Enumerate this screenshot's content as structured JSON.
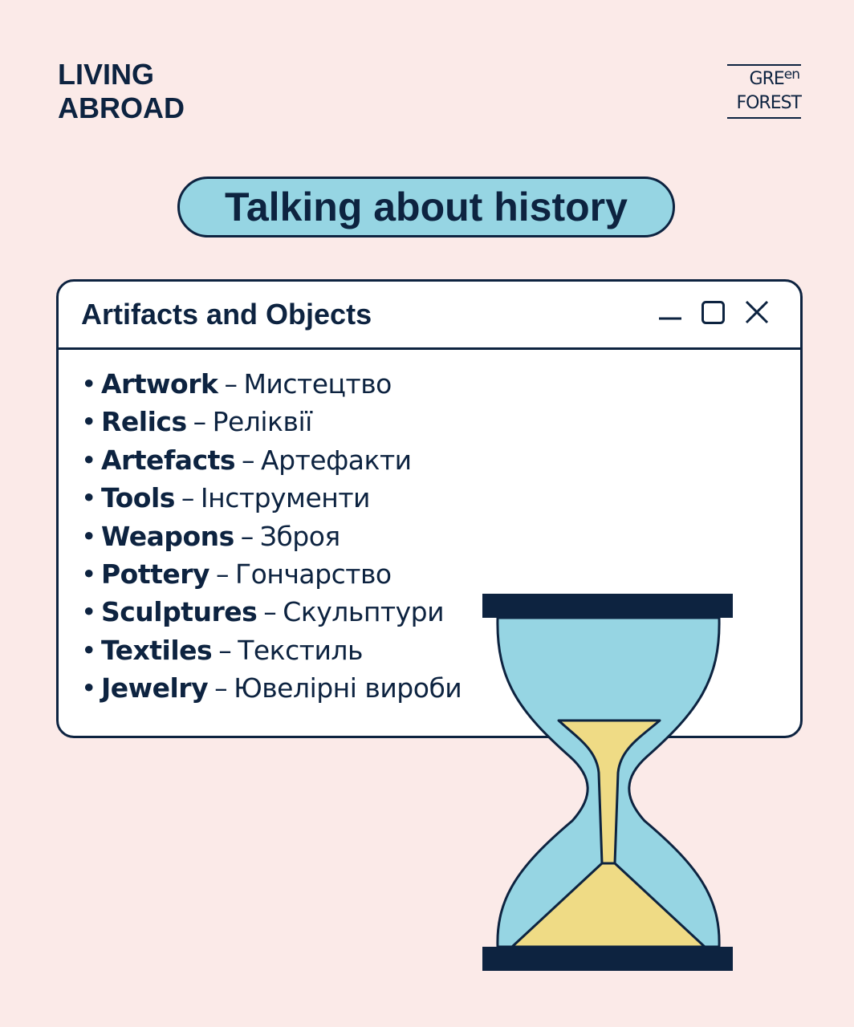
{
  "brand": {
    "line1": "LIVING",
    "line2": "ABROAD"
  },
  "logo": {
    "line1_main": "GRE",
    "line1_sup": "en",
    "line2": "FOREST"
  },
  "title": "Talking about history",
  "window": {
    "title": "Artifacts and Objects",
    "controls": [
      "minimize-icon",
      "maximize-icon",
      "close-icon"
    ],
    "items": [
      {
        "en": "Artwork",
        "uk": "Мистецтво"
      },
      {
        "en": "Relics",
        "uk": "Реліквії"
      },
      {
        "en": "Artefacts",
        "uk": "Артефакти"
      },
      {
        "en": "Tools",
        "uk": "Інструменти"
      },
      {
        "en": "Weapons",
        "uk": "Зброя"
      },
      {
        "en": "Pottery",
        "uk": "Гончарство"
      },
      {
        "en": "Sculptures",
        "uk": "Скульптури"
      },
      {
        "en": "Textiles",
        "uk": "Текстиль"
      },
      {
        "en": "Jewelry",
        "uk": "Ювелірні вироби"
      }
    ]
  },
  "illustration": "hourglass-icon",
  "colors": {
    "background": "#fbeae8",
    "navy": "#0d2340",
    "light_blue": "#96d5e3",
    "sand": "#efdb85",
    "white": "#ffffff"
  }
}
